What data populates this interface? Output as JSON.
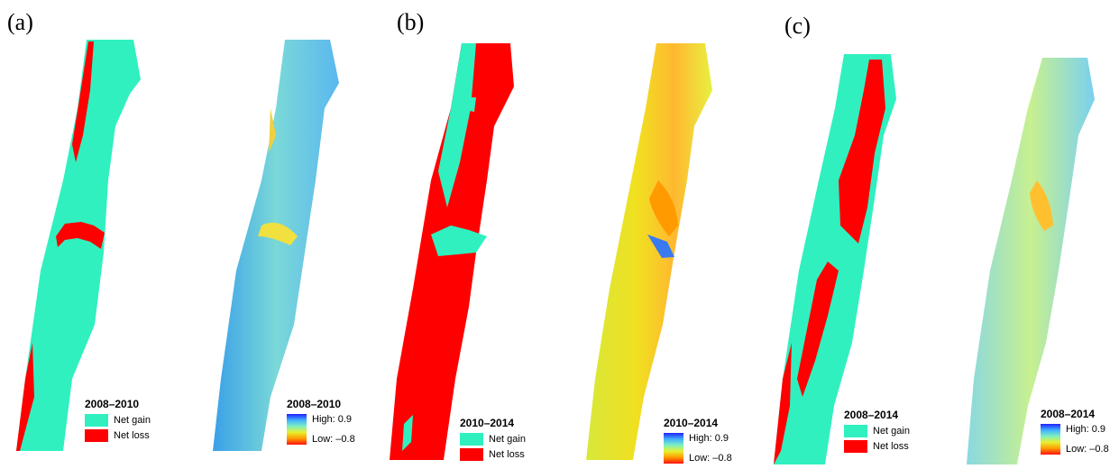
{
  "panels": [
    {
      "label": "(a)"
    },
    {
      "label": "(b)"
    },
    {
      "label": "(c)"
    }
  ],
  "class_legends": [
    {
      "title": "2008–2010",
      "gain": "Net gain",
      "loss": "Net loss"
    },
    {
      "title": "2010–2014",
      "gain": "Net gain",
      "loss": "Net loss"
    },
    {
      "title": "2008–2014",
      "gain": "Net gain",
      "loss": "Net loss"
    }
  ],
  "ramp_legends": [
    {
      "title": "2008–2010",
      "high": "High:  0.9",
      "low": "Low:  –0.8"
    },
    {
      "title": "2010–2014",
      "high": "High:  0.9",
      "low": "Low:  –0.8"
    },
    {
      "title": "2008–2014",
      "high": "High:  0.9",
      "low": "Low:  –0.8"
    }
  ],
  "colors": {
    "net_gain": "#30f0c0",
    "net_loss": "#ff0000",
    "ramp_high": "#2020ff",
    "ramp_low": "#ff1010"
  }
}
